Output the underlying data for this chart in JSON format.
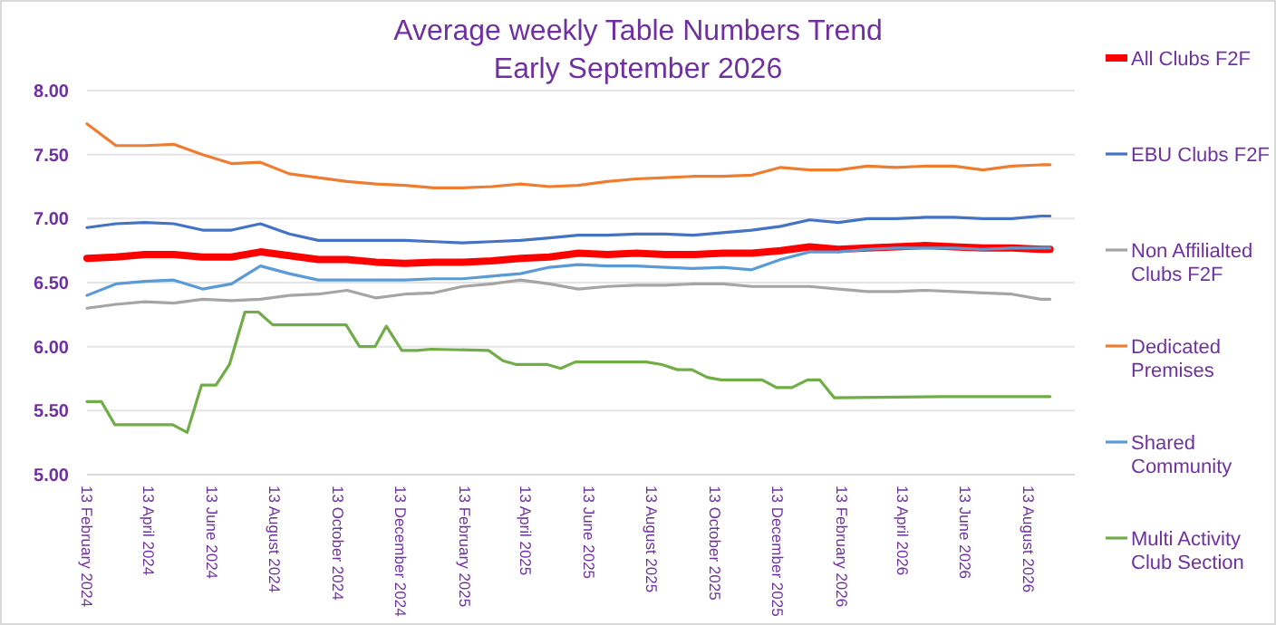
{
  "chart_data": {
    "type": "line",
    "title": "Average weekly Table Numbers Trend",
    "subtitle": "Early September 2026",
    "x": [
      "2024-02-13",
      "2024-03-12",
      "2024-04-09",
      "2024-05-07",
      "2024-06-04",
      "2024-07-02",
      "2024-07-30",
      "2024-08-27",
      "2024-09-24",
      "2024-10-22",
      "2024-11-19",
      "2024-12-17",
      "2025-01-14",
      "2025-02-11",
      "2025-03-11",
      "2025-04-08",
      "2025-05-06",
      "2025-06-03",
      "2025-07-01",
      "2025-07-29",
      "2025-08-26",
      "2025-09-23",
      "2025-10-21",
      "2025-11-18",
      "2025-12-16",
      "2026-01-13",
      "2026-02-10",
      "2026-03-10",
      "2026-04-07",
      "2026-05-05",
      "2026-06-02",
      "2026-06-30",
      "2026-07-28",
      "2026-08-25",
      "2026-09-03"
    ],
    "series": [
      {
        "name": "All Clubs F2F",
        "color": "#ff0000",
        "values": [
          6.69,
          6.7,
          6.72,
          6.72,
          6.7,
          6.7,
          6.74,
          6.71,
          6.68,
          6.68,
          6.66,
          6.65,
          6.66,
          6.66,
          6.67,
          6.69,
          6.7,
          6.73,
          6.72,
          6.73,
          6.72,
          6.72,
          6.73,
          6.73,
          6.75,
          6.78,
          6.76,
          6.77,
          6.78,
          6.79,
          6.78,
          6.77,
          6.77,
          6.76,
          6.76
        ]
      },
      {
        "name": "EBU Clubs F2F",
        "color": "#4472c4",
        "values": [
          6.93,
          6.96,
          6.97,
          6.96,
          6.91,
          6.91,
          6.96,
          6.88,
          6.83,
          6.83,
          6.83,
          6.83,
          6.82,
          6.81,
          6.82,
          6.83,
          6.85,
          6.87,
          6.87,
          6.88,
          6.88,
          6.87,
          6.89,
          6.91,
          6.94,
          6.99,
          6.97,
          7.0,
          7.0,
          7.01,
          7.01,
          7.0,
          7.0,
          7.02,
          7.02
        ]
      },
      {
        "name": "Non Affilialted Clubs F2F",
        "color": "#a5a5a5",
        "values": [
          6.3,
          6.33,
          6.35,
          6.34,
          6.37,
          6.36,
          6.37,
          6.4,
          6.41,
          6.44,
          6.38,
          6.41,
          6.42,
          6.47,
          6.49,
          6.52,
          6.49,
          6.45,
          6.47,
          6.48,
          6.48,
          6.49,
          6.49,
          6.47,
          6.47,
          6.47,
          6.45,
          6.43,
          6.43,
          6.44,
          6.43,
          6.42,
          6.41,
          6.37,
          6.37
        ]
      },
      {
        "name": "Dedicated Premises",
        "color": "#ed7d31",
        "values": [
          7.74,
          7.57,
          7.57,
          7.58,
          7.5,
          7.43,
          7.44,
          7.35,
          7.32,
          7.29,
          7.27,
          7.26,
          7.24,
          7.24,
          7.25,
          7.27,
          7.25,
          7.26,
          7.29,
          7.31,
          7.32,
          7.33,
          7.33,
          7.34,
          7.4,
          7.38,
          7.38,
          7.41,
          7.4,
          7.41,
          7.41,
          7.38,
          7.41,
          7.42,
          7.42
        ]
      },
      {
        "name": "Shared Community",
        "color": "#5b9bd5",
        "values": [
          6.4,
          6.49,
          6.51,
          6.52,
          6.45,
          6.49,
          6.63,
          6.57,
          6.52,
          6.52,
          6.52,
          6.52,
          6.53,
          6.53,
          6.55,
          6.57,
          6.62,
          6.64,
          6.63,
          6.63,
          6.62,
          6.61,
          6.62,
          6.6,
          6.68,
          6.74,
          6.74,
          6.76,
          6.77,
          6.77,
          6.77,
          6.76,
          6.77,
          6.77,
          6.77
        ]
      },
      {
        "name": "Multi Activity Club Section",
        "color": "#70ad47",
        "x": [
          "2024-02-13",
          "2024-02-27",
          "2024-03-11",
          "2024-05-06",
          "2024-05-20",
          "2024-06-03",
          "2024-06-17",
          "2024-06-30",
          "2024-07-15",
          "2024-07-28",
          "2024-08-11",
          "2024-10-21",
          "2024-11-03",
          "2024-11-18",
          "2024-11-29",
          "2024-12-14",
          "2024-12-29",
          "2025-01-11",
          "2025-03-08",
          "2025-03-22",
          "2025-04-04",
          "2025-05-04",
          "2025-05-17",
          "2025-05-31",
          "2025-08-08",
          "2025-08-23",
          "2025-09-07",
          "2025-09-21",
          "2025-10-06",
          "2025-10-19",
          "2025-11-28",
          "2025-12-12",
          "2025-12-27",
          "2026-01-11",
          "2026-01-23",
          "2026-02-06",
          "2026-05-22",
          "2026-09-03"
        ],
        "values": [
          5.57,
          5.57,
          5.39,
          5.39,
          5.33,
          5.7,
          5.7,
          5.86,
          6.27,
          6.27,
          6.17,
          6.17,
          6.0,
          6.0,
          6.16,
          5.97,
          5.97,
          5.98,
          5.97,
          5.89,
          5.86,
          5.86,
          5.83,
          5.88,
          5.88,
          5.86,
          5.82,
          5.82,
          5.76,
          5.74,
          5.74,
          5.68,
          5.68,
          5.74,
          5.74,
          5.6,
          5.61,
          5.61
        ]
      }
    ],
    "xlim": [
      "2024-02-13",
      "2026-09-27"
    ],
    "xticks": [
      {
        "value": "2024-02-13",
        "label": "13 February 2024"
      },
      {
        "value": "2024-04-13",
        "label": "13 April 2024"
      },
      {
        "value": "2024-06-13",
        "label": "13 June 2024"
      },
      {
        "value": "2024-08-13",
        "label": "13 August 2024"
      },
      {
        "value": "2024-10-13",
        "label": "13 October 2024"
      },
      {
        "value": "2024-12-13",
        "label": "13 December 2024"
      },
      {
        "value": "2025-02-13",
        "label": "13 February 2025"
      },
      {
        "value": "2025-04-13",
        "label": "13 April 2025"
      },
      {
        "value": "2025-06-13",
        "label": "13 June 2025"
      },
      {
        "value": "2025-08-13",
        "label": "13 August 2025"
      },
      {
        "value": "2025-10-13",
        "label": "13 October 2025"
      },
      {
        "value": "2025-12-13",
        "label": "13 December 2025"
      },
      {
        "value": "2026-02-13",
        "label": "13 February 2026"
      },
      {
        "value": "2026-04-13",
        "label": "13 April 2026"
      },
      {
        "value": "2026-06-13",
        "label": "13 June 2026"
      },
      {
        "value": "2026-08-13",
        "label": "13 August 2026"
      }
    ],
    "ylim": [
      5,
      8
    ],
    "yticks": [
      {
        "value": 5,
        "label": "5.00"
      },
      {
        "value": 5.5,
        "label": "5.50"
      },
      {
        "value": 6,
        "label": "6.00"
      },
      {
        "value": 6.5,
        "label": "6.50"
      },
      {
        "value": 7,
        "label": "7.00"
      },
      {
        "value": 7.5,
        "label": "7.50"
      },
      {
        "value": 8,
        "label": "8.00"
      }
    ],
    "grid": "y",
    "legend": "right",
    "marker": "none",
    "line_style": "solid"
  }
}
